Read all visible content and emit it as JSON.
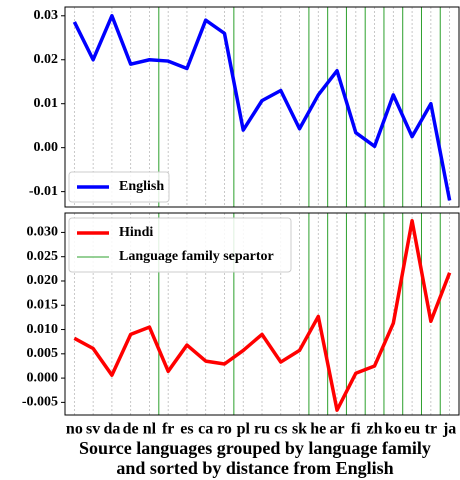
{
  "chart_data": {
    "type": "line",
    "categories": [
      "no",
      "sv",
      "da",
      "de",
      "nl",
      "fr",
      "es",
      "ca",
      "ro",
      "pl",
      "ru",
      "cs",
      "sk",
      "he",
      "ar",
      "fi",
      "zh",
      "ko",
      "eu",
      "tr",
      "ja"
    ],
    "x_label": [
      "Source languages grouped by language family",
      "and sorted by distance from English"
    ],
    "separator_label": "Language family separtor",
    "separator_color": "#2ca02c",
    "separators": [
      4.5,
      8.5,
      12.5,
      13.5,
      14.5,
      15.5,
      16.5,
      17.5,
      18.5,
      19.5
    ],
    "panels": [
      {
        "series": [
          {
            "name": "English",
            "color": "#0000ff",
            "values": [
              0.0286,
              0.02,
              0.03,
              0.019,
              0.02,
              0.0197,
              0.018,
              0.029,
              0.026,
              0.004,
              0.0107,
              0.013,
              0.0043,
              0.012,
              0.0175,
              0.0034,
              0.0003,
              0.012,
              0.0025,
              0.01,
              -0.012
            ]
          }
        ],
        "ylim": [
          -0.0135,
          0.032
        ],
        "yticks": [
          -0.01,
          {
            "value": 0,
            "label": "0.00"
          },
          0.01,
          0.02,
          0.03
        ],
        "legend": "lower left",
        "show_separator_legend": false
      },
      {
        "series": [
          {
            "name": "Hindi",
            "color": "#ff0000",
            "values": [
              0.0082,
              0.0061,
              0.0006,
              0.009,
              0.0105,
              0.0014,
              0.0068,
              0.0035,
              0.0029,
              0.0057,
              0.009,
              0.0033,
              0.0057,
              0.0127,
              -0.0066,
              0.001,
              0.0025,
              0.0113,
              0.0324,
              0.0117,
              0.0217
            ]
          }
        ],
        "ylim": [
          -0.0076,
          0.034
        ],
        "yticks": [
          -0.005,
          {
            "value": 0,
            "label": "0.000"
          },
          0.005,
          {
            "value": 0.01,
            "label": "0.010"
          },
          0.015,
          {
            "value": 0.02,
            "label": "0.020"
          },
          0.025,
          {
            "value": 0.03,
            "label": "0.030"
          }
        ],
        "legend": "upper left",
        "show_separator_legend": true
      }
    ]
  }
}
